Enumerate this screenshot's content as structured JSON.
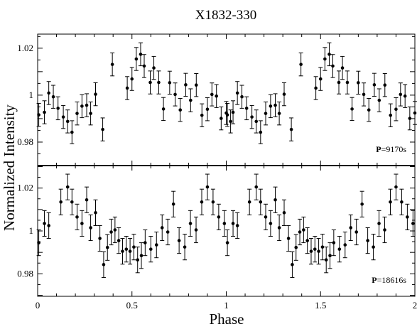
{
  "chart_data": {
    "type": "scatter",
    "title": "X1832-330",
    "xlabel": "Phase",
    "ylabel": "Normalized Intensity",
    "xlim": [
      0,
      2
    ],
    "x_ticks": [
      {
        "value": 0,
        "label": "0"
      },
      {
        "value": 0.5,
        "label": "0.5"
      },
      {
        "value": 1,
        "label": "1"
      },
      {
        "value": 1.5,
        "label": "1.5"
      },
      {
        "value": 2,
        "label": "2"
      }
    ],
    "grid": false,
    "legend": "none",
    "panels": [
      {
        "name": "top",
        "annotation_prefix": "P",
        "annotation_value": "=9170s",
        "ylim": [
          0.97,
          1.026
        ],
        "y_ticks": [
          {
            "value": 0.98,
            "label": "0.98"
          },
          {
            "value": 1,
            "label": "1"
          },
          {
            "value": 1.02,
            "label": "1.02"
          }
        ],
        "x": [
          0.025,
          0.075,
          0.125,
          0.175,
          0.225,
          0.275,
          0.325,
          0.375,
          0.425,
          0.475,
          0.525,
          0.575,
          0.625,
          0.675,
          0.725,
          0.775,
          0.825,
          0.875,
          0.925,
          0.975,
          1.025,
          1.075,
          1.125,
          1.175,
          1.225,
          1.275,
          1.325,
          1.375,
          1.425,
          1.475,
          1.525,
          1.575,
          1.625,
          1.675,
          1.725,
          1.775,
          1.825,
          1.875,
          1.925,
          1.975
        ],
        "y": [
          0.9925,
          0.9995,
          0.9945,
          0.9895,
          0.9925,
          0.9935,
          0.9925,
          0.9855,
          0.9905,
          1.0035,
          1.0075,
          1.0165,
          1.0115,
          1.0115,
          1.0025,
          1.0035,
          0.9985,
          1.0045,
          0.9915,
          1.0015,
          0.9925,
          0.9995,
          0.9945,
          0.9895,
          0.9925,
          0.9955,
          0.9925,
          0.9855,
          0.9905,
          1.0035,
          1.0075,
          1.0165,
          1.0115,
          1.0115,
          1.0025,
          1.0035,
          0.9985,
          1.0045,
          0.9905,
          1.0045
        ],
        "points": [
          [
            0.006,
            0.9916,
            0.0049
          ],
          [
            0.036,
            0.9927,
            0.0049
          ],
          [
            0.059,
            1.0009,
            0.0049
          ],
          [
            0.083,
            0.9993,
            0.0049
          ],
          [
            0.108,
            0.9944,
            0.0049
          ],
          [
            0.136,
            0.9907,
            0.0049
          ],
          [
            0.159,
            0.9888,
            0.0049
          ],
          [
            0.182,
            0.9842,
            0.0049
          ],
          [
            0.209,
            0.9922,
            0.0049
          ],
          [
            0.235,
            0.9953,
            0.0049
          ],
          [
            0.26,
            0.9957,
            0.0049
          ],
          [
            0.281,
            0.9922,
            0.0049
          ],
          [
            0.307,
            1.0004,
            0.0049
          ],
          [
            0.345,
            0.9854,
            0.0049
          ],
          [
            0.396,
            1.0131,
            0.0049
          ],
          [
            0.475,
            1.003,
            0.0049
          ],
          [
            0.5,
            1.0069,
            0.0049
          ],
          [
            0.523,
            1.0154,
            0.0049
          ],
          [
            0.546,
            1.0174,
            0.0049
          ],
          [
            0.565,
            1.0124,
            0.0049
          ],
          [
            0.597,
            1.0054,
            0.0049
          ],
          [
            0.616,
            1.0116,
            0.0049
          ],
          [
            0.642,
            1.0054,
            0.0049
          ],
          [
            0.667,
            0.9941,
            0.0049
          ],
          [
            0.7,
            1.0053,
            0.0049
          ],
          [
            0.729,
            1.0003,
            0.0049
          ],
          [
            0.756,
            0.9937,
            0.0049
          ],
          [
            0.785,
            1.0044,
            0.0049
          ],
          [
            0.811,
            0.9978,
            0.0049
          ],
          [
            0.841,
            1.0043,
            0.0049
          ],
          [
            0.871,
            0.9914,
            0.0049
          ],
          [
            0.9,
            0.994,
            0.0049
          ],
          [
            0.924,
            1.0003,
            0.0049
          ],
          [
            0.948,
            0.9996,
            0.0049
          ],
          [
            0.973,
            0.9901,
            0.0049
          ],
          [
            1.0,
            0.9924,
            0.0049
          ],
          [
            1.023,
            0.9888,
            0.0049
          ]
        ]
      },
      {
        "name": "bottom",
        "annotation_prefix": "P",
        "annotation_value": "=18616s",
        "ylim": [
          0.9695,
          1.0305
        ],
        "y_ticks": [
          {
            "value": 0.98,
            "label": "0.98"
          },
          {
            "value": 1,
            "label": "1"
          },
          {
            "value": 1.02,
            "label": "1.02"
          }
        ],
        "points": [
          [
            0.006,
            0.9945,
            0.006
          ],
          [
            0.036,
            1.0035,
            0.006
          ],
          [
            0.059,
            1.0025,
            0.006
          ],
          [
            0.123,
            1.0135,
            0.006
          ],
          [
            0.159,
            1.0205,
            0.006
          ],
          [
            0.182,
            1.0135,
            0.006
          ],
          [
            0.209,
            1.0065,
            0.006
          ],
          [
            0.235,
            1.0035,
            0.006
          ],
          [
            0.26,
            1.0145,
            0.006
          ],
          [
            0.281,
            1.0015,
            0.006
          ],
          [
            0.307,
            1.0085,
            0.006
          ],
          [
            0.33,
            0.9965,
            0.006
          ],
          [
            0.35,
            0.9843,
            0.006
          ],
          [
            0.37,
            0.9923,
            0.006
          ],
          [
            0.39,
            0.9995,
            0.006
          ],
          [
            0.41,
            1.0005,
            0.006
          ],
          [
            0.43,
            0.9955,
            0.006
          ],
          [
            0.45,
            0.9905,
            0.006
          ],
          [
            0.47,
            0.9915,
            0.006
          ],
          [
            0.49,
            0.9905,
            0.006
          ],
          [
            0.51,
            0.9925,
            0.006
          ],
          [
            0.53,
            0.9865,
            0.006
          ],
          [
            0.55,
            0.9885,
            0.006
          ],
          [
            0.57,
            0.9945,
            0.006
          ],
          [
            0.6,
            0.9915,
            0.006
          ],
          [
            0.63,
            0.9935,
            0.006
          ],
          [
            0.66,
            1.0015,
            0.006
          ],
          [
            0.69,
            0.9995,
            0.006
          ],
          [
            0.72,
            1.0125,
            0.006
          ],
          [
            0.75,
            0.9955,
            0.006
          ],
          [
            0.78,
            0.9925,
            0.006
          ],
          [
            0.81,
            1.0035,
            0.006
          ],
          [
            0.84,
            1.0005,
            0.006
          ],
          [
            0.87,
            1.0135,
            0.006
          ],
          [
            0.9,
            1.0205,
            0.006
          ],
          [
            0.93,
            1.0135,
            0.006
          ],
          [
            0.96,
            1.0065,
            0.006
          ],
          [
            0.99,
            1.0035,
            0.006
          ]
        ]
      }
    ]
  }
}
